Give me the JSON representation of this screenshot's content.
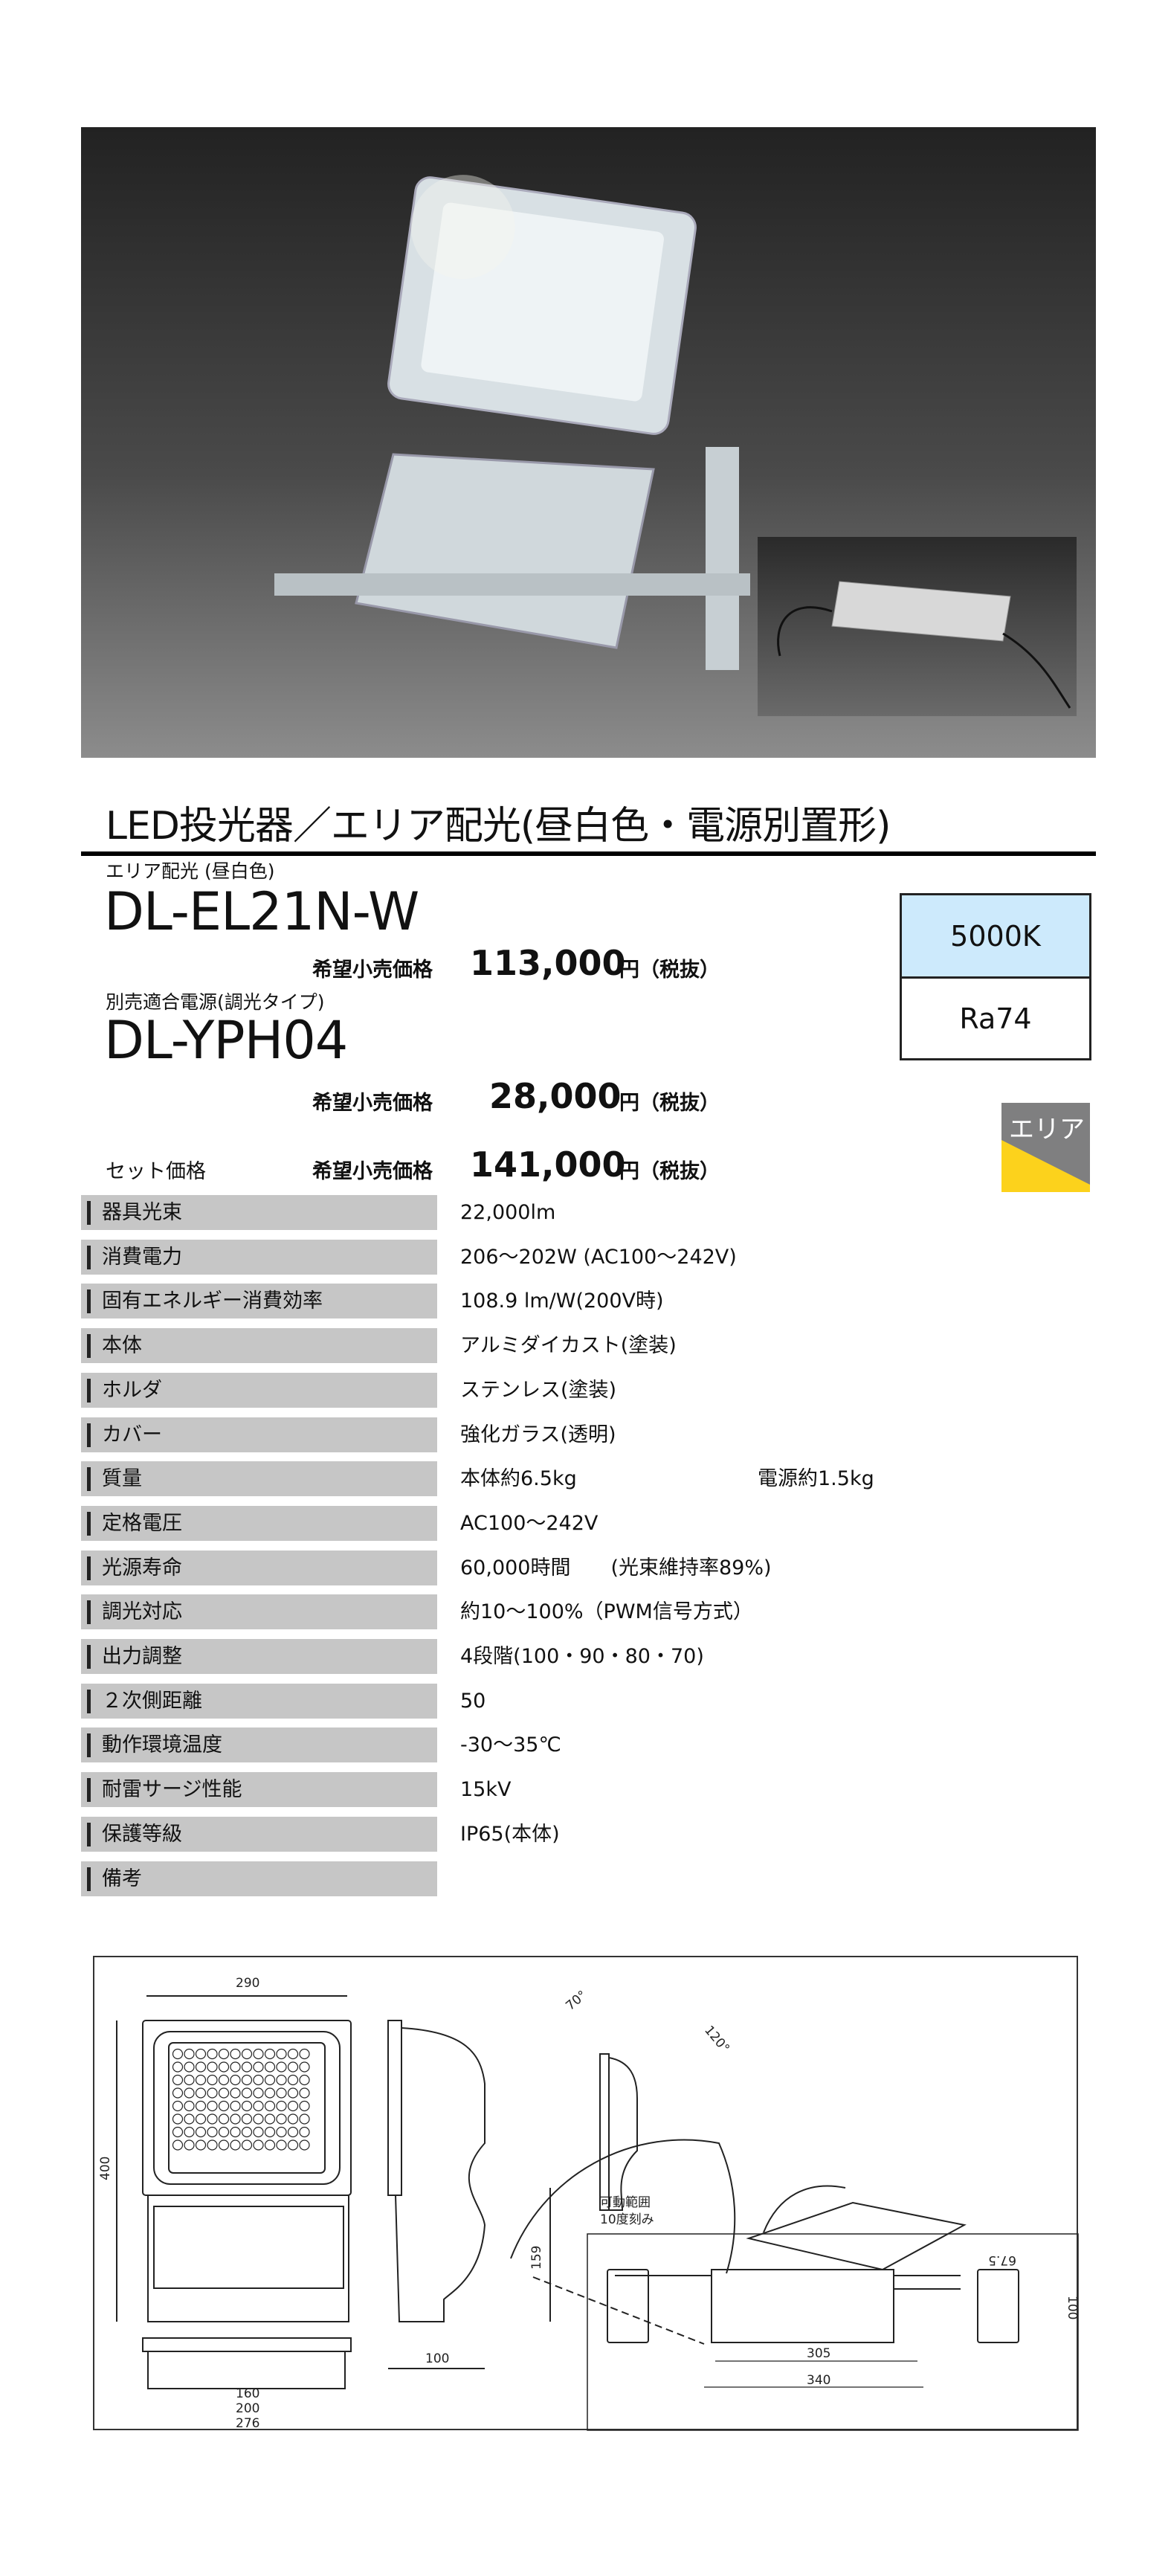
{
  "title": "LED投光器／エリア配光(昼白色・電源別置形)",
  "product": {
    "category": "エリア配光 (昼白色)",
    "model": "DL-EL21N-W",
    "price_label": "希望小売価格",
    "price": "113,000",
    "price_suffix": "円（税抜）"
  },
  "power_supply": {
    "category": "別売適合電源(調光タイプ)",
    "model": "DL-YPH04",
    "price_label": "希望小売価格",
    "price": "28,000",
    "price_suffix": "円（税抜）"
  },
  "set": {
    "label": "セット価格",
    "price_label": "希望小売価格",
    "price": "141,000",
    "price_suffix": "円（税抜）"
  },
  "spec_box": {
    "color_temp": "5000K",
    "ra": "Ra74",
    "color_temp_bg": "#cdeafc"
  },
  "badge": {
    "label": "エリア",
    "colors": {
      "bg": "#7f7f80",
      "accent": "#fcd21c"
    }
  },
  "specs": [
    {
      "label": "器具光束",
      "value": "22,000lm"
    },
    {
      "label": "消費電力",
      "value": "206～202W (AC100～242V)"
    },
    {
      "label": "固有エネルギー消費効率",
      "value": "108.9 lm/W(200V時)"
    },
    {
      "label": "本体",
      "value": "アルミダイカスト(塗装)"
    },
    {
      "label": "ホルダ",
      "value": "ステンレス(塗装)"
    },
    {
      "label": "カバー",
      "value": "強化ガラス(透明)"
    },
    {
      "label": "質量",
      "value": "本体約6.5kg",
      "value2": "電源約1.5kg"
    },
    {
      "label": "定格電圧",
      "value": "AC100～242V"
    },
    {
      "label": "光源寿命",
      "value": "60,000時間　　(光束維持率89%)"
    },
    {
      "label": "調光対応",
      "value": "約10～100%（PWM信号方式）"
    },
    {
      "label": "出力調整",
      "value": "4段階(100・90・80・70)"
    },
    {
      "label": "２次側距離",
      "value": "50"
    },
    {
      "label": "動作環境温度",
      "value": "-30～35℃"
    },
    {
      "label": "耐雷サージ性能",
      "value": "15kV"
    },
    {
      "label": "保護等級",
      "value": "IP65(本体)"
    },
    {
      "label": "備考",
      "value": ""
    }
  ],
  "drawing": {
    "dims": {
      "width": "290",
      "height": "400",
      "pivot": "159",
      "depth": "100",
      "d160": "160",
      "d200": "200",
      "d276": "276",
      "angle1": "70°",
      "angle2": "120°",
      "ps_305": "305",
      "ps_340": "340",
      "ps_100": "100",
      "ps_675": "67.5"
    },
    "note1": "可動範囲",
    "note2": "10度刻み"
  }
}
